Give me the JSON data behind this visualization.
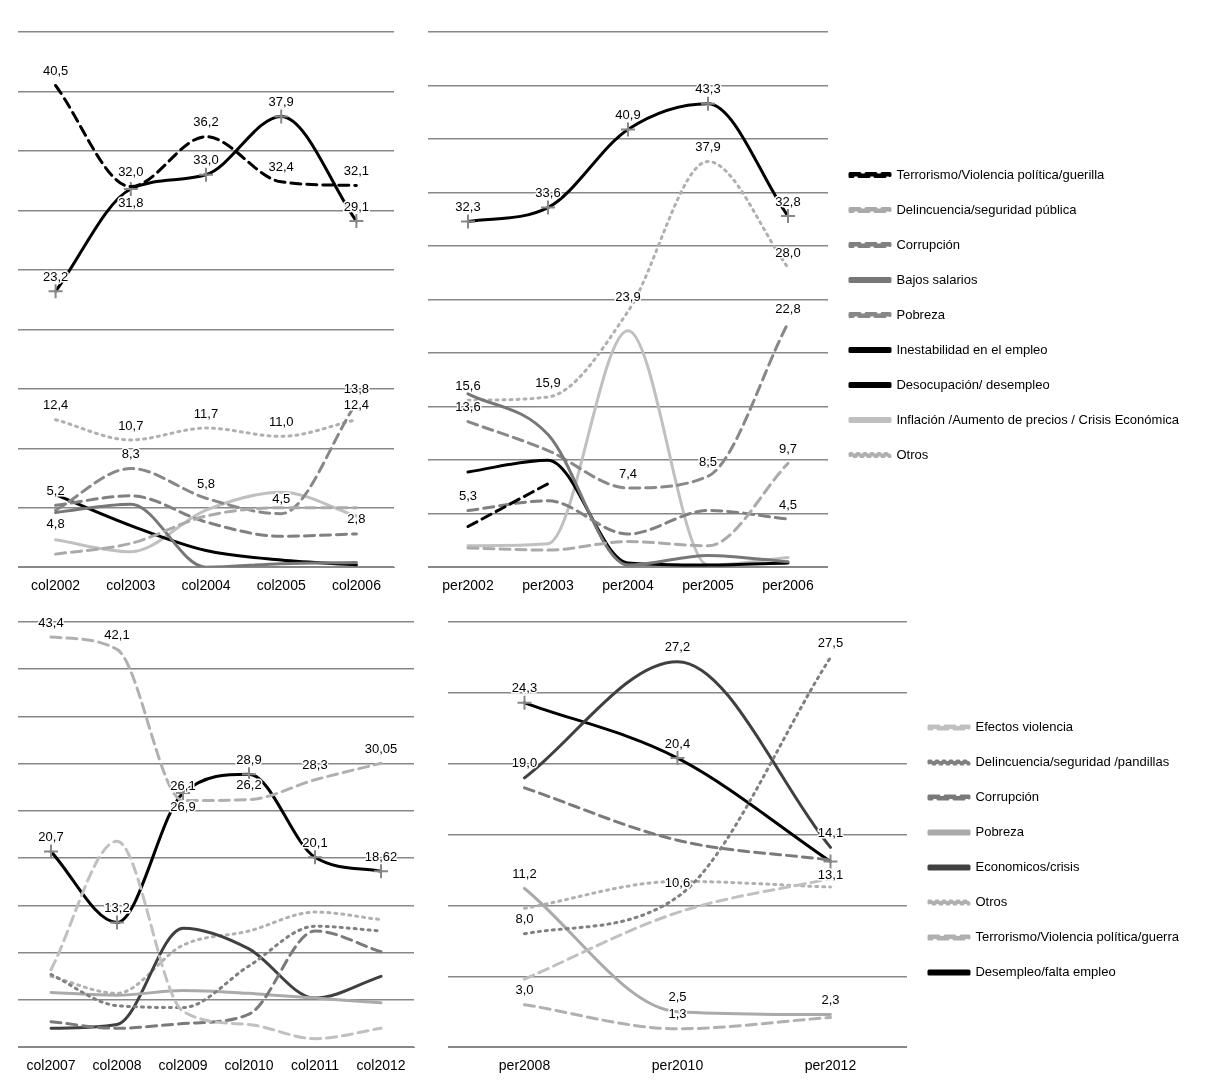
{
  "chart_data": [
    {
      "type": "line",
      "categories": [
        "col2002",
        "col2003",
        "col2004",
        "col2005",
        "col2006"
      ],
      "ylim": [
        0,
        45
      ],
      "yticks": [
        {
          "value": 0,
          "label": null
        },
        {
          "value": 5,
          "label": null
        },
        {
          "value": 10,
          "label": null
        },
        {
          "value": 15,
          "label": null
        },
        {
          "value": 20,
          "label": null
        },
        {
          "value": 25,
          "label": null
        },
        {
          "value": 30,
          "label": null
        },
        {
          "value": 35,
          "label": null
        },
        {
          "value": 40,
          "label": null
        },
        {
          "value": 45,
          "label": null
        }
      ],
      "grid": "y",
      "tick_labels": "x",
      "legend": false,
      "series": [
        {
          "color": "#000000",
          "line_style": "dashed",
          "values": [
            40.5,
            32.0,
            36.2,
            32.4,
            32.1
          ],
          "value_labels": [
            "40,5",
            "32,0",
            "36,2",
            "32,4",
            "32,1"
          ]
        },
        {
          "color": "#aaaaaa",
          "line_style": "dashed",
          "values": [
            1.1,
            2.0,
            4.3,
            5.0,
            5.0
          ]
        },
        {
          "color": "#808080",
          "line_style": "dashed",
          "values": [
            5.2,
            6.0,
            3.8,
            2.6,
            2.8
          ],
          "value_labels": [
            "5,2",
            null,
            null,
            null,
            "2,8"
          ]
        },
        {
          "color": "#777777",
          "line_style": "solid",
          "values": [
            4.6,
            5.3,
            0.0,
            0.3,
            0.4
          ]
        },
        {
          "color": "#888888",
          "line_style": "dashed",
          "values": [
            4.8,
            8.3,
            5.8,
            4.5,
            13.8
          ],
          "value_labels": [
            "4,8",
            "8,3",
            "5,8",
            "4,5",
            "13,8"
          ]
        },
        {
          "color": "#000000",
          "line_style": "solid",
          "values": [
            6.1,
            3.5,
            1.4,
            0.6,
            0.2
          ]
        },
        {
          "color": "#000000",
          "line_style": "solid",
          "marker": "cross",
          "values": [
            23.2,
            31.8,
            33.0,
            37.9,
            29.1
          ],
          "value_labels": [
            "23,2",
            "31,8",
            "33,0",
            "37,9",
            "29,1"
          ]
        },
        {
          "color": "#c0c0c0",
          "line_style": "solid",
          "values": [
            2.3,
            1.3,
            4.8,
            6.3,
            4.3
          ]
        },
        {
          "color": "#b0b0b0",
          "line_style": "dotted",
          "values": [
            12.4,
            10.7,
            11.7,
            11.0,
            12.4
          ],
          "value_labels": [
            "12,4",
            "10,7",
            "11,7",
            "11,0",
            "12,4"
          ]
        }
      ]
    },
    {
      "type": "line",
      "categories": [
        "per2002",
        "per2003",
        "per2004",
        "per2005",
        "per2006"
      ],
      "ylim": [
        0,
        50
      ],
      "yticks": [
        {
          "value": 0,
          "label": null
        },
        {
          "value": 5,
          "label": null
        },
        {
          "value": 10,
          "label": null
        },
        {
          "value": 15,
          "label": null
        },
        {
          "value": 20,
          "label": null
        },
        {
          "value": 25,
          "label": null
        },
        {
          "value": 30,
          "label": null
        },
        {
          "value": 35,
          "label": null
        },
        {
          "value": 40,
          "label": null
        },
        {
          "value": 45,
          "label": null
        },
        {
          "value": 50,
          "label": null
        }
      ],
      "grid": "y",
      "tick_labels": "x",
      "legend": "right",
      "series": [
        {
          "name": "Terrorismo/Violencia política/guerilla",
          "color": "#000000",
          "line_style": "dashed",
          "values": [
            3.8,
            7.8,
            null,
            null,
            null
          ]
        },
        {
          "name": "Delincuencia/seguridad pública",
          "color": "#aaaaaa",
          "line_style": "dashed",
          "values": [
            1.8,
            1.6,
            2.4,
            2.0,
            9.7
          ],
          "value_labels": [
            null,
            null,
            null,
            null,
            "9,7"
          ]
        },
        {
          "name": "Corrupción",
          "color": "#808080",
          "line_style": "dashed",
          "values": [
            5.3,
            6.2,
            3.1,
            5.3,
            4.5
          ],
          "value_labels": [
            "5,3",
            null,
            null,
            null,
            "4,5"
          ]
        },
        {
          "name": "Bajos salarios",
          "color": "#777777",
          "line_style": "solid",
          "values": [
            16.2,
            12.4,
            0.2,
            1.1,
            0.5
          ]
        },
        {
          "name": "Pobreza",
          "color": "#888888",
          "line_style": "dashed",
          "values": [
            13.6,
            10.9,
            7.4,
            8.5,
            22.8
          ],
          "value_labels": [
            "13,6",
            null,
            "7,4",
            "8,5",
            "22,8"
          ]
        },
        {
          "name": "Inestabilidad en el empleo",
          "color": "#000000",
          "line_style": "solid",
          "values": [
            8.9,
            10.0,
            0.4,
            0.2,
            0.4
          ]
        },
        {
          "name": "Desocupación/ desempleo",
          "color": "#000000",
          "line_style": "solid",
          "marker": "cross",
          "values": [
            32.3,
            33.6,
            40.9,
            43.3,
            32.8
          ],
          "value_labels": [
            "32,3",
            "33,6",
            "40,9",
            "43,3",
            "32,8"
          ]
        },
        {
          "name": "Inflación /Aumento de precios / Crisis Económica",
          "color": "#c0c0c0",
          "line_style": "solid",
          "values": [
            2.0,
            2.2,
            22.1,
            0.2,
            0.9
          ]
        },
        {
          "name": "Otros",
          "color": "#b0b0b0",
          "line_style": "dotted",
          "values": [
            15.6,
            15.9,
            23.9,
            37.9,
            28.0
          ],
          "value_labels": [
            "15,6",
            "15,9",
            "23,9",
            "37,9",
            "28,0"
          ]
        }
      ]
    },
    {
      "type": "line",
      "categories": [
        "col2007",
        "col2008",
        "col2009",
        "col2010",
        "col2011",
        "col2012"
      ],
      "ylim": [
        0,
        45
      ],
      "yticks": [
        {
          "value": 0,
          "label": null
        },
        {
          "value": 5,
          "label": null
        },
        {
          "value": 10,
          "label": null
        },
        {
          "value": 15,
          "label": null
        },
        {
          "value": 20,
          "label": null
        },
        {
          "value": 25,
          "label": null
        },
        {
          "value": 30,
          "label": null
        },
        {
          "value": 35,
          "label": null
        },
        {
          "value": 40,
          "label": null
        },
        {
          "value": 45,
          "label": null
        }
      ],
      "grid": "y",
      "tick_labels": "x",
      "legend": false,
      "series": [
        {
          "color": "#c0c0c0",
          "line_style": "dashed",
          "values": [
            8.2,
            21.8,
            3.8,
            2.4,
            0.9,
            2.0
          ]
        },
        {
          "color": "#808080",
          "line_style": "dotted",
          "values": [
            7.7,
            4.4,
            4.2,
            8.6,
            12.8,
            12.3
          ]
        },
        {
          "color": "#7a7a7a",
          "line_style": "dashed",
          "values": [
            2.7,
            2.0,
            2.5,
            3.5,
            12.3,
            10.1
          ]
        },
        {
          "color": "#aaaaaa",
          "line_style": "solid",
          "values": [
            5.8,
            5.5,
            6.0,
            5.7,
            5.2,
            4.7
          ]
        },
        {
          "color": "#404040",
          "line_style": "solid",
          "values": [
            2.0,
            2.4,
            12.6,
            10.4,
            5.2,
            7.5
          ]
        },
        {
          "color": "#b0b0b0",
          "line_style": "dotted",
          "values": [
            7.5,
            5.7,
            10.8,
            12.3,
            14.3,
            13.5
          ]
        },
        {
          "color": "#b0b0b0",
          "line_style": "dashed",
          "values": [
            43.4,
            42.1,
            26.1,
            26.2,
            28.3,
            30.05
          ],
          "value_labels": [
            "43,4",
            "42,1",
            "26,1",
            "26,2",
            "28,3",
            "30,05"
          ]
        },
        {
          "color": "#000000",
          "line_style": "solid",
          "marker": "cross",
          "values": [
            20.7,
            13.2,
            26.9,
            28.9,
            20.1,
            18.62
          ],
          "value_labels": [
            "20,7",
            "13,2",
            "26,9",
            "28,9",
            "20,1",
            "18,62"
          ]
        }
      ]
    },
    {
      "type": "line",
      "categories": [
        "per2008",
        "per2010",
        "per2012"
      ],
      "ylim": [
        0,
        30
      ],
      "yticks": [
        {
          "value": 0,
          "label": null
        },
        {
          "value": 5,
          "label": null
        },
        {
          "value": 10,
          "label": null
        },
        {
          "value": 15,
          "label": null
        },
        {
          "value": 20,
          "label": null
        },
        {
          "value": 25,
          "label": null
        },
        {
          "value": 30,
          "label": null
        }
      ],
      "grid": "y",
      "tick_labels": "x",
      "legend": "right",
      "series": [
        {
          "name": "Efectos violencia",
          "color": "#c0c0c0",
          "line_style": "dashed",
          "values": [
            4.8,
            9.5,
            11.9
          ]
        },
        {
          "name": "Delincuencia/seguridad /pandillas",
          "color": "#808080",
          "line_style": "dotted",
          "values": [
            8.0,
            10.6,
            27.5
          ],
          "value_labels": [
            "8,0",
            "10,6",
            "27,5"
          ]
        },
        {
          "name": "Corrupción",
          "color": "#7a7a7a",
          "line_style": "dashed",
          "values": [
            18.3,
            14.6,
            13.2
          ]
        },
        {
          "name": "Pobreza",
          "color": "#aaaaaa",
          "line_style": "solid",
          "values": [
            11.2,
            2.5,
            2.3
          ],
          "value_labels": [
            "11,2",
            "2,5",
            "2,3"
          ]
        },
        {
          "name": "Economicos/crisis",
          "color": "#404040",
          "line_style": "solid",
          "values": [
            19.0,
            27.2,
            14.1
          ],
          "value_labels": [
            "19,0",
            "27,2",
            "14,1"
          ]
        },
        {
          "name": "Otros",
          "color": "#b0b0b0",
          "line_style": "dotted",
          "values": [
            9.8,
            11.7,
            11.3
          ]
        },
        {
          "name": "Terrorismo/Violencia política/guerra",
          "color": "#b0b0b0",
          "line_style": "dashed",
          "values": [
            3.0,
            1.3,
            2.1
          ],
          "value_labels": [
            "3,0",
            "1,3",
            null
          ]
        },
        {
          "name": "Desempleo/falta empleo",
          "color": "#000000",
          "line_style": "solid",
          "marker": "cross",
          "values": [
            24.3,
            20.4,
            13.1
          ],
          "value_labels": [
            "24,3",
            "20,4",
            "13,1"
          ]
        }
      ]
    }
  ]
}
